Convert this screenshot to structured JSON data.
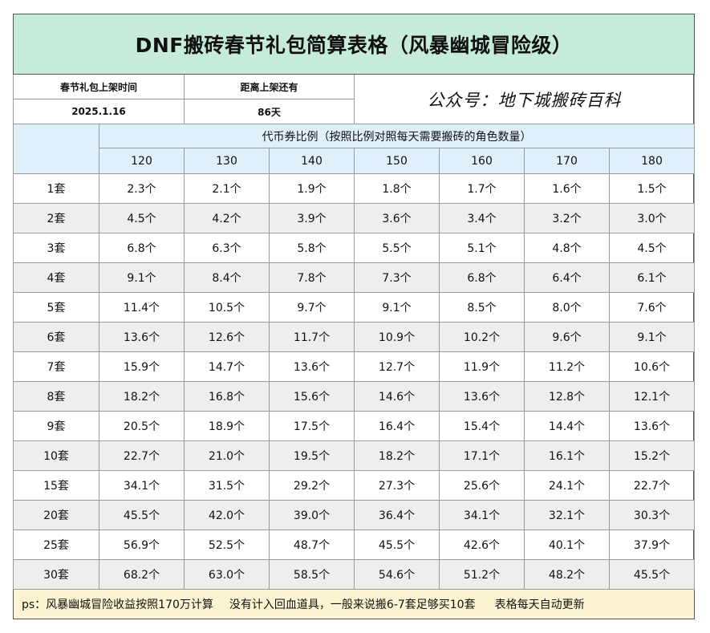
{
  "title": "DNF搬砖春节礼包简算表格（风暴幽城冒险级）",
  "info": {
    "launch_label": "春节礼包上架时间",
    "launch_value": "2025.1.16",
    "remaining_label": "距离上架还有",
    "remaining_value": "86天",
    "brand": "公众号：地下城搬砖百科"
  },
  "ratio_title": "代币券比例（按照比例对照每天需要搬砖的角色数量）",
  "columns": [
    "120",
    "130",
    "140",
    "150",
    "160",
    "170",
    "180"
  ],
  "rows": [
    {
      "label": "1套",
      "values": [
        "2.3个",
        "2.1个",
        "1.9个",
        "1.8个",
        "1.7个",
        "1.6个",
        "1.5个"
      ]
    },
    {
      "label": "2套",
      "values": [
        "4.5个",
        "4.2个",
        "3.9个",
        "3.6个",
        "3.4个",
        "3.2个",
        "3.0个"
      ]
    },
    {
      "label": "3套",
      "values": [
        "6.8个",
        "6.3个",
        "5.8个",
        "5.5个",
        "5.1个",
        "4.8个",
        "4.5个"
      ]
    },
    {
      "label": "4套",
      "values": [
        "9.1个",
        "8.4个",
        "7.8个",
        "7.3个",
        "6.8个",
        "6.4个",
        "6.1个"
      ]
    },
    {
      "label": "5套",
      "values": [
        "11.4个",
        "10.5个",
        "9.7个",
        "9.1个",
        "8.5个",
        "8.0个",
        "7.6个"
      ]
    },
    {
      "label": "6套",
      "values": [
        "13.6个",
        "12.6个",
        "11.7个",
        "10.9个",
        "10.2个",
        "9.6个",
        "9.1个"
      ]
    },
    {
      "label": "7套",
      "values": [
        "15.9个",
        "14.7个",
        "13.6个",
        "12.7个",
        "11.9个",
        "11.2个",
        "10.6个"
      ]
    },
    {
      "label": "8套",
      "values": [
        "18.2个",
        "16.8个",
        "15.6个",
        "14.6个",
        "13.6个",
        "12.8个",
        "12.1个"
      ]
    },
    {
      "label": "9套",
      "values": [
        "20.5个",
        "18.9个",
        "17.5个",
        "16.4个",
        "15.4个",
        "14.4个",
        "13.6个"
      ]
    },
    {
      "label": "10套",
      "values": [
        "22.7个",
        "21.0个",
        "19.5个",
        "18.2个",
        "17.1个",
        "16.1个",
        "15.2个"
      ]
    },
    {
      "label": "15套",
      "values": [
        "34.1个",
        "31.5个",
        "29.2个",
        "27.3个",
        "25.6个",
        "24.1个",
        "22.7个"
      ]
    },
    {
      "label": "20套",
      "values": [
        "45.5个",
        "42.0个",
        "39.0个",
        "36.4个",
        "34.1个",
        "32.1个",
        "30.3个"
      ]
    },
    {
      "label": "25套",
      "values": [
        "56.9个",
        "52.5个",
        "48.7个",
        "45.5个",
        "42.6个",
        "40.1个",
        "37.9个"
      ]
    },
    {
      "label": "30套",
      "values": [
        "68.2个",
        "63.0个",
        "58.5个",
        "54.6个",
        "51.2个",
        "48.2个",
        "45.5个"
      ]
    }
  ],
  "footer": {
    "part1": "ps：风暴幽城冒险收益按照170万计算",
    "part2": "没有计入回血道具，一般来说搬6-7套足够买10套",
    "part3": "表格每天自动更新"
  }
}
